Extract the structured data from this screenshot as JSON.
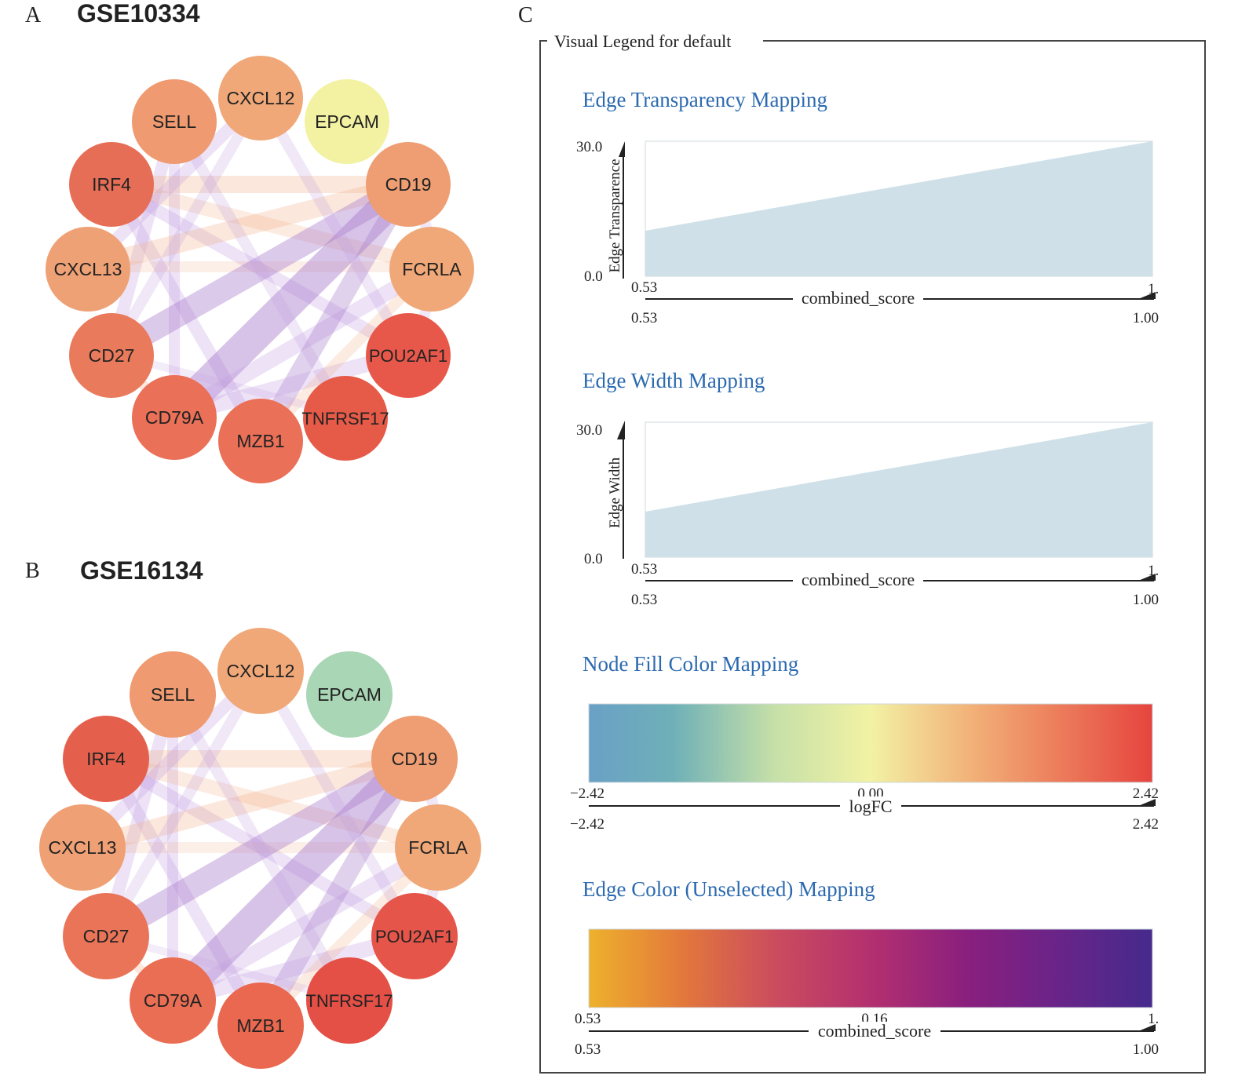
{
  "panel_a": {
    "letter": "A",
    "title": "GSE10334",
    "nodes": [
      {
        "label": "CXCL12",
        "color": "#f0a878"
      },
      {
        "label": "EPCAM",
        "color": "#f2f2a2"
      },
      {
        "label": "CD19",
        "color": "#ee9e72"
      },
      {
        "label": "FCRLA",
        "color": "#f0a878"
      },
      {
        "label": "POU2AF1",
        "color": "#e8584a"
      },
      {
        "label": "TNFRSF17",
        "color": "#e65a48"
      },
      {
        "label": "MZB1",
        "color": "#ea7058"
      },
      {
        "label": "CD79A",
        "color": "#ea7058"
      },
      {
        "label": "CD27",
        "color": "#ea7a5c"
      },
      {
        "label": "CXCL13",
        "color": "#efa176"
      },
      {
        "label": "IRF4",
        "color": "#e76e56"
      },
      {
        "label": "SELL",
        "color": "#ef9a70"
      }
    ]
  },
  "panel_b": {
    "letter": "B",
    "title": "GSE16134",
    "nodes": [
      {
        "label": "CXCL12",
        "color": "#f0a878"
      },
      {
        "label": "EPCAM",
        "color": "#a9d6b4"
      },
      {
        "label": "CD19",
        "color": "#ee9e72"
      },
      {
        "label": "FCRLA",
        "color": "#f0a878"
      },
      {
        "label": "POU2AF1",
        "color": "#e6554a"
      },
      {
        "label": "TNFRSF17",
        "color": "#e44f46"
      },
      {
        "label": "MZB1",
        "color": "#e9684f"
      },
      {
        "label": "CD79A",
        "color": "#ea6e54"
      },
      {
        "label": "CD27",
        "color": "#ea7458"
      },
      {
        "label": "CXCL13",
        "color": "#efa074"
      },
      {
        "label": "IRF4",
        "color": "#e4604c"
      },
      {
        "label": "SELL",
        "color": "#ef9a70"
      }
    ]
  },
  "panel_c": {
    "letter": "C",
    "legend_title": "Visual Legend for default",
    "sections": [
      {
        "title": "Edge Transparency Mapping",
        "ylabel": "Edge Transparence",
        "ymax": "30.0",
        "ymin": "0.0",
        "x_start": "0.53",
        "x_end_short": "1.",
        "x_label": "combined_score",
        "range_min": "0.53",
        "range_max": "1.00"
      },
      {
        "title": "Edge Width Mapping",
        "ylabel": "Edge Width",
        "ymax": "30.0",
        "ymin": "0.0",
        "x_start": "0.53",
        "x_end_short": "1.",
        "x_label": "combined_score",
        "range_min": "0.53",
        "range_max": "1.00"
      },
      {
        "title": "Node Fill Color Mapping",
        "tick_left": "−2.42",
        "tick_mid": "0.00",
        "tick_right": "2.42",
        "x_label": "logFC",
        "range_min": "−2.42",
        "range_max": "2.42",
        "colors": [
          "#6aa0c6",
          "#6fb0b8",
          "#c6e0a8",
          "#f2f2a4",
          "#f2b47a",
          "#ec7e5c",
          "#e6443e"
        ]
      },
      {
        "title": "Edge Color (Unselected) Mapping",
        "tick_left": "0.53",
        "tick_mid": "0.16",
        "tick_right": "1.",
        "x_label": "combined_score",
        "range_min": "0.53",
        "range_max": "1.00",
        "colors": [
          "#eeb12c",
          "#e2773c",
          "#cb4c5e",
          "#b3306f",
          "#8a1f7e",
          "#6a2488",
          "#452a8c"
        ]
      }
    ]
  },
  "colors": {
    "title_blue": "#2c6ab0",
    "area_fill": "#cfe0e8",
    "edge_purple": "#a77bcc",
    "edge_orange": "#f2b088"
  }
}
